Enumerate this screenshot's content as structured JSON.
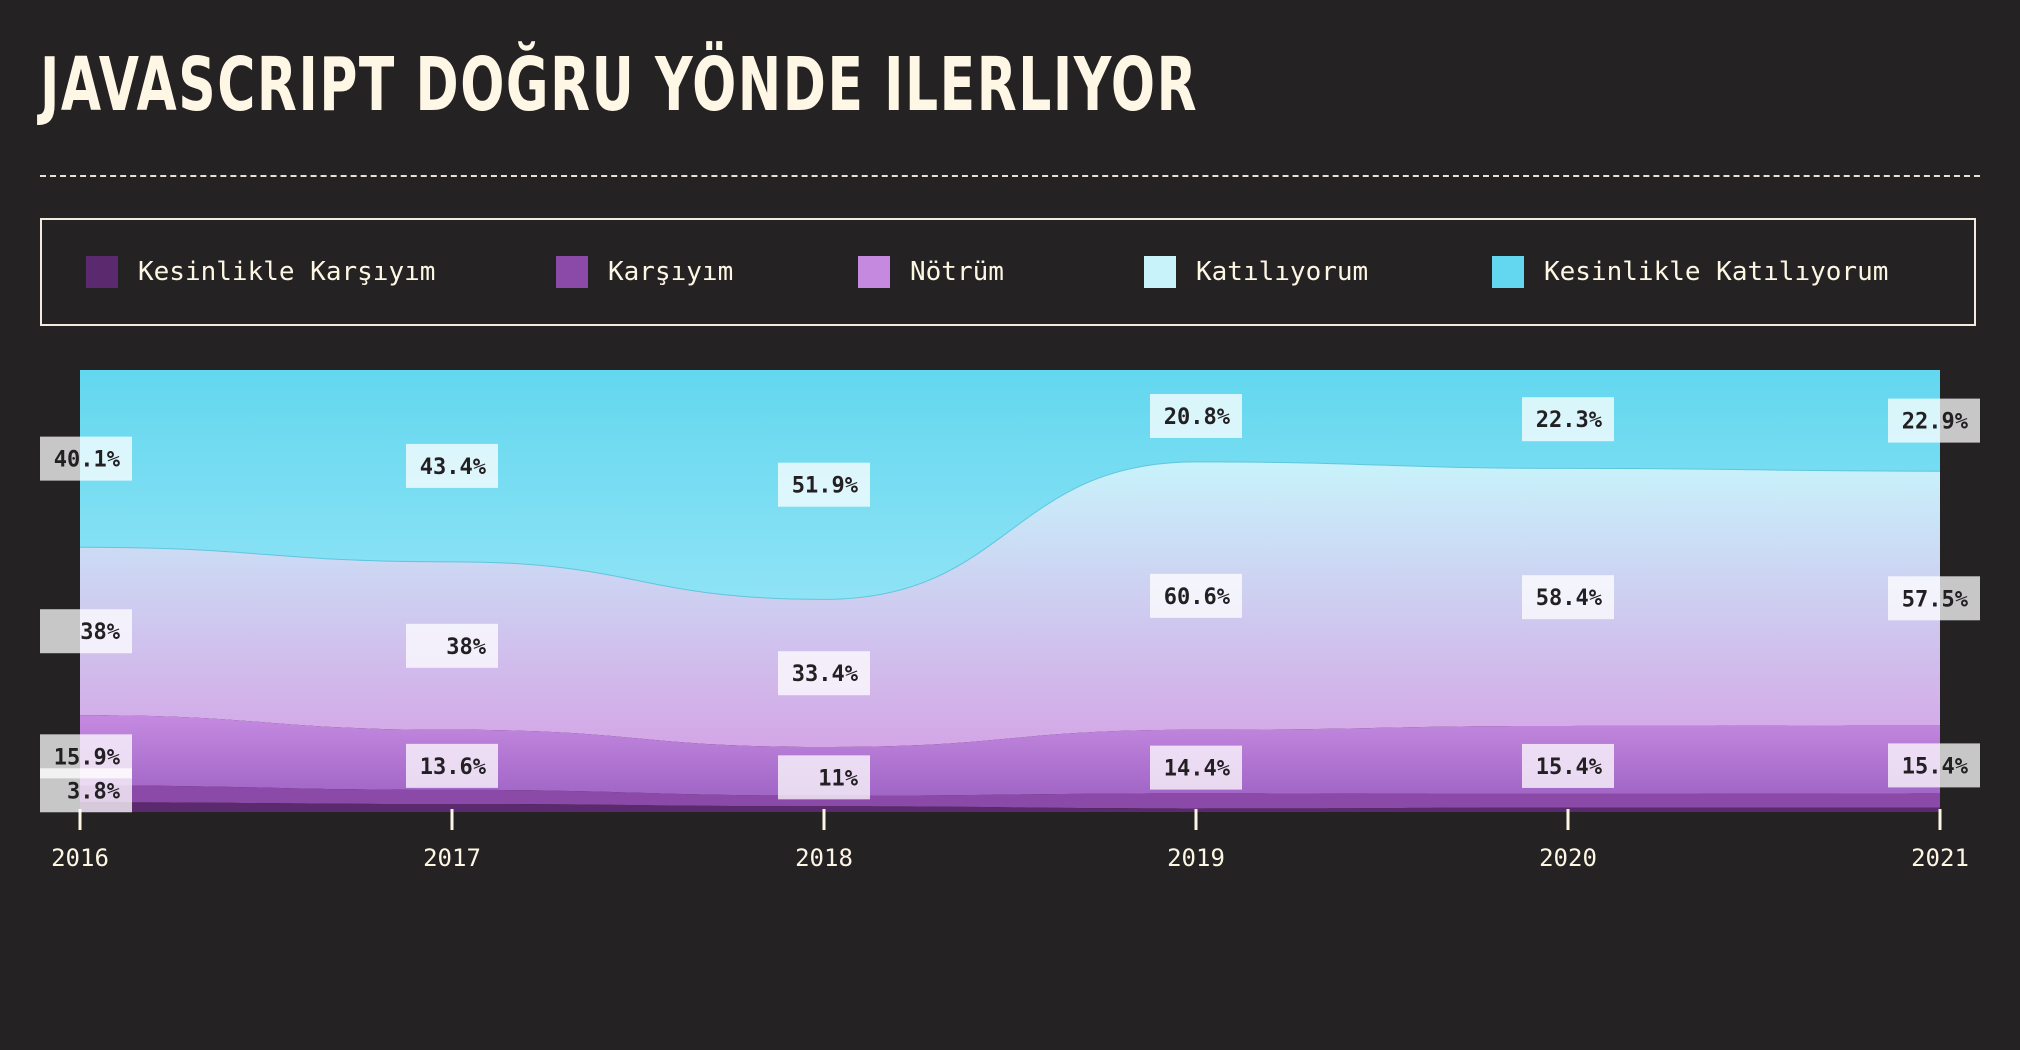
{
  "title": "JAVASCRIPT DOĞRU YÖNDE ILERLIYOR",
  "chart_data": {
    "type": "area",
    "stacked": true,
    "normalized": true,
    "x": [
      "2016",
      "2017",
      "2018",
      "2019",
      "2020",
      "2021"
    ],
    "series": [
      {
        "name": "Kesinlikle Karşıyım",
        "color": "#5b2a6e",
        "values": [
          2.2,
          1.8,
          1.3,
          0.8,
          1.0,
          1.0
        ]
      },
      {
        "name": "Karşıyım",
        "color": "#8b4aa8",
        "values": [
          3.8,
          3.2,
          2.4,
          3.4,
          3.1,
          3.2
        ]
      },
      {
        "name": "Nötrüm",
        "color": "#c58ae0",
        "labeled_values": [
          15.9,
          13.6,
          11,
          14.4,
          15.4,
          15.4
        ],
        "values": [
          15.9,
          13.6,
          11,
          14.4,
          15.4,
          15.4
        ]
      },
      {
        "name": "Katılıyorum",
        "color": "#c8f3fb",
        "values": [
          38,
          38,
          33.4,
          60.6,
          58.4,
          57.5
        ]
      },
      {
        "name": "Kesinlikle Katılıyorum",
        "color": "#62d7ef",
        "values": [
          40.1,
          43.4,
          51.9,
          20.8,
          22.3,
          22.9
        ]
      }
    ],
    "data_labels": {
      "Karşıyım": [
        "3.8%",
        "",
        "",
        "",
        "",
        ""
      ],
      "Nötrüm": [
        "15.9%",
        "13.6%",
        "11%",
        "14.4%",
        "15.4%",
        "15.4%"
      ],
      "Katılıyorum": [
        "38%",
        "38%",
        "33.4%",
        "60.6%",
        "58.4%",
        "57.5%"
      ],
      "Kesinlikle Katılıyorum": [
        "40.1%",
        "43.4%",
        "51.9%",
        "20.8%",
        "22.3%",
        "22.9%"
      ]
    },
    "ylim": [
      0,
      100
    ],
    "legend_position": "top",
    "grid": false
  }
}
